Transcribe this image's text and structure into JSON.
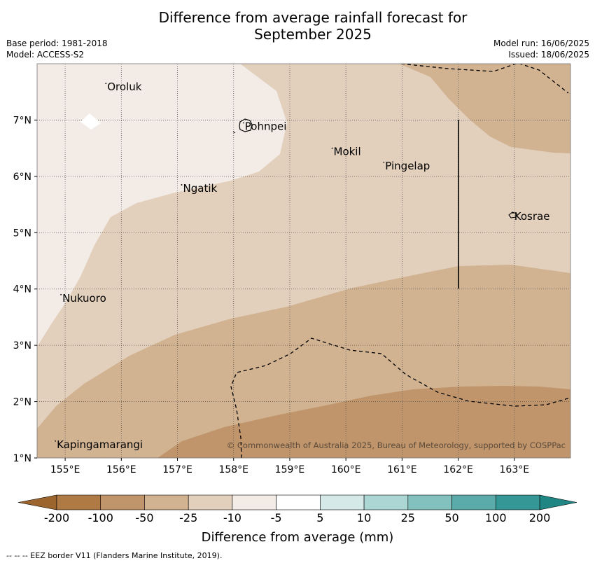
{
  "title_line1": "Difference from average rainfall forecast for",
  "title_line2": "September 2025",
  "base_period": "Base period: 1981-2018",
  "model": "Model: ACCESS-S2",
  "model_run": "Model run: 16/06/2025",
  "issued": "Issued: 18/06/2025",
  "copyright": "© Commonwealth of Australia 2025, Bureau of Meteorology, supported by COSPPac",
  "eez_note": "--  --  -- EEZ border V11 (Flanders Marine Institute, 2019).",
  "map": {
    "lon_range": [
      154.5,
      164.0
    ],
    "lat_range": [
      1.0,
      8.0
    ],
    "lon_ticks": [
      "155°E",
      "156°E",
      "157°E",
      "158°E",
      "159°E",
      "160°E",
      "161°E",
      "162°E",
      "163°E"
    ],
    "lat_ticks": [
      "1°N",
      "2°N",
      "3°N",
      "4°N",
      "5°N",
      "6°N",
      "7°N"
    ],
    "grid_style": "dotted",
    "zones": [
      {
        "category": "-10 to -5",
        "color": "#f3ece6"
      },
      {
        "category": "-25 to -10",
        "color": "#e2d0bd"
      },
      {
        "category": "-50 to -25",
        "color": "#d1b291"
      },
      {
        "category": "-100 to -50",
        "color": "#c0956b"
      }
    ],
    "places": [
      {
        "name": "Oroluk",
        "lon": 155.75,
        "lat": 7.6
      },
      {
        "name": "Pohnpei",
        "lon": 158.2,
        "lat": 6.9
      },
      {
        "name": "Mokil",
        "lon": 159.78,
        "lat": 6.45
      },
      {
        "name": "Pingelap",
        "lon": 160.7,
        "lat": 6.2
      },
      {
        "name": "Ngatik",
        "lon": 157.1,
        "lat": 5.8
      },
      {
        "name": "Kosrae",
        "lon": 163.0,
        "lat": 5.3
      },
      {
        "name": "Nukuoro",
        "lon": 154.95,
        "lat": 3.85
      },
      {
        "name": "Kapingamarangi",
        "lon": 154.85,
        "lat": 1.25
      }
    ]
  },
  "colorbar": {
    "title": "Difference from average (mm)",
    "labels": [
      "-200",
      "-100",
      "-50",
      "-25",
      "-10",
      "-5",
      "5",
      "10",
      "25",
      "50",
      "100",
      "200"
    ],
    "colors": [
      "#b07a45",
      "#c0956b",
      "#d1b291",
      "#e2d0bd",
      "#f3ece6",
      "#ffffff",
      "#d5e9e8",
      "#acd6d4",
      "#82c1bd",
      "#5babaa",
      "#359896"
    ],
    "under_color": "#9d652e",
    "over_color": "#1f8684"
  }
}
